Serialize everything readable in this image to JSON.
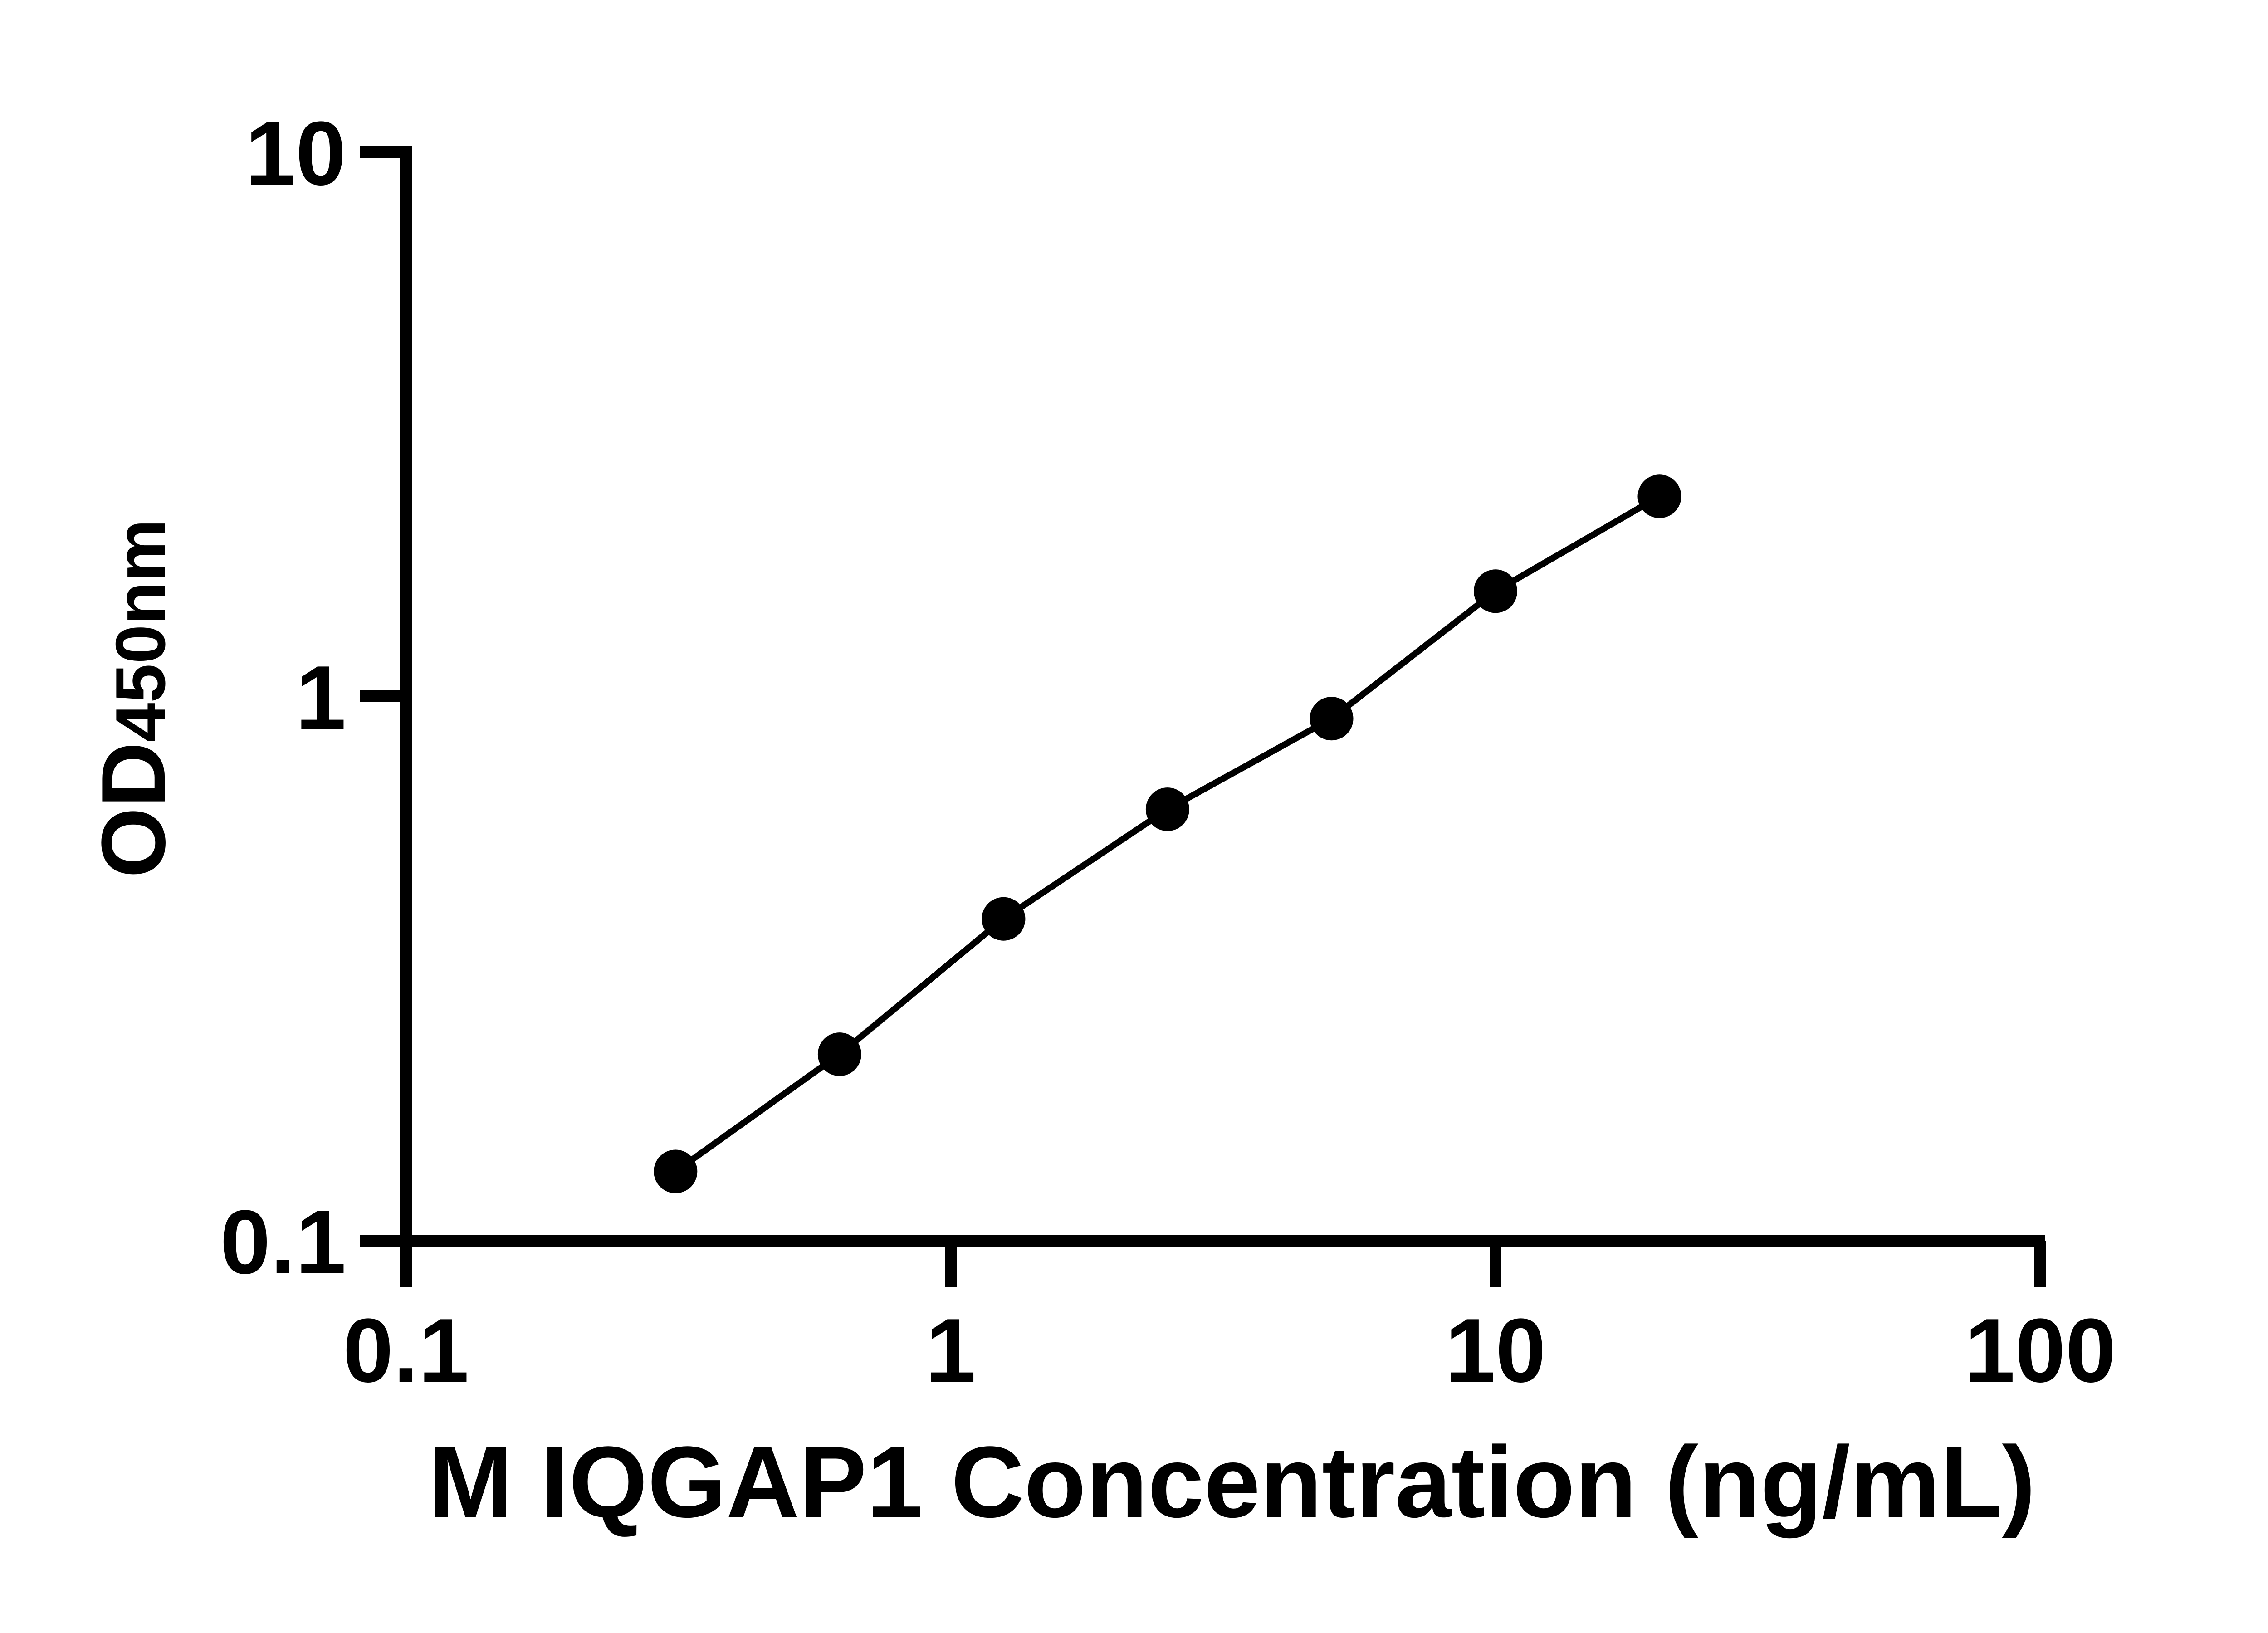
{
  "figure": {
    "background": "#ffffff",
    "ink_color": "#000000"
  },
  "chart_data": {
    "type": "scatter",
    "title": "",
    "x": [
      0.3125,
      0.625,
      1.25,
      2.5,
      5,
      10,
      20
    ],
    "y": [
      0.134,
      0.22,
      0.39,
      0.62,
      0.91,
      1.56,
      2.33
    ],
    "xlabel": "M IQGAP1 Concentration (ng/mL)",
    "ylabel": "OD450nm",
    "ylabel_main": "OD",
    "ylabel_sub": "450nm",
    "x_scale": "log",
    "y_scale": "log",
    "xlim": [
      0.1,
      100
    ],
    "ylim": [
      0.1,
      10
    ],
    "x_tick_values": [
      0.1,
      1,
      10,
      100
    ],
    "x_tick_labels": [
      "0.1",
      "1",
      "10",
      "100"
    ],
    "y_tick_values": [
      0.1,
      1,
      10
    ],
    "y_tick_labels": [
      "0.1",
      "1",
      "10"
    ],
    "grid": false,
    "legend": false,
    "marker": "circle",
    "marker_color": "#000000",
    "line_color": "#000000"
  }
}
